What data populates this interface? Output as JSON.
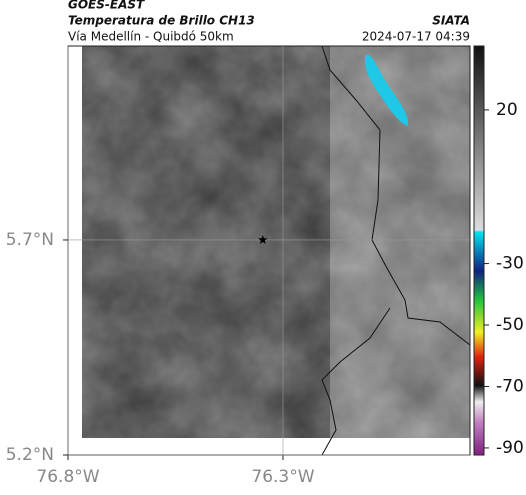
{
  "header": {
    "source": "GOES-EAST",
    "title": "Temperatura de Brillo CH13",
    "subtitle": "Vía Medellín - Quibdó 50km",
    "agency": "SIATA",
    "timestamp": "2024-07-17 04:39"
  },
  "chart_data": {
    "type": "map",
    "xlim": [
      -76.8,
      -75.865
    ],
    "ylim": [
      5.2,
      6.151
    ],
    "xticks": [
      {
        "value": -76.8,
        "label": "76.8°W"
      },
      {
        "value": -76.3,
        "label": "76.3°W"
      }
    ],
    "yticks": [
      {
        "value": 5.2,
        "label": "5.2°N"
      },
      {
        "value": 5.7,
        "label": "5.7°N"
      }
    ],
    "grid": true,
    "marker": {
      "lon": -76.347,
      "lat": 5.7
    },
    "colorbar": {
      "lim": [
        -92.3,
        40.8
      ],
      "ticks": [
        20,
        -30,
        -50,
        -70,
        -90
      ]
    }
  }
}
